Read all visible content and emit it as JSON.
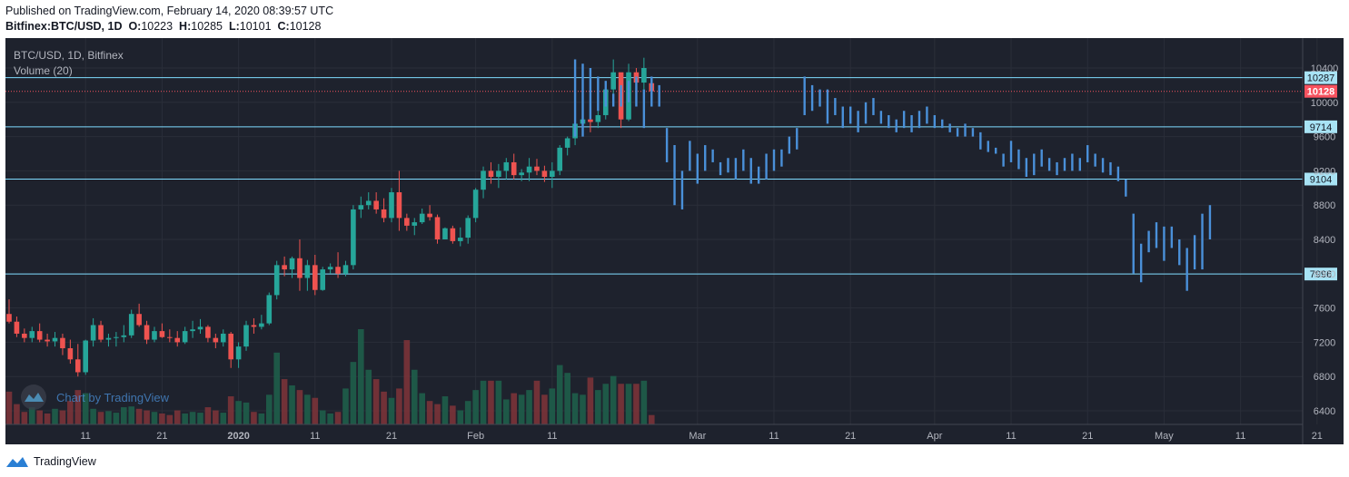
{
  "header": {
    "published": "Published on TradingView.com, February 14, 2020 08:39:57 UTC",
    "symbol": "Bitfinex:BTC/USD, 1D",
    "o_label": "O:",
    "o": "10223",
    "h_label": "H:",
    "h": "10285",
    "l_label": "L:",
    "l": "10101",
    "c_label": "C:",
    "c": "10128"
  },
  "legend": {
    "title": "BTC/USD, 1D, Bitfinex",
    "volume": "Volume (20)"
  },
  "watermark": "Chart by TradingView",
  "footer": {
    "brand": "TradingView"
  },
  "colors": {
    "background": "#1e222d",
    "grid": "#2a2e39",
    "up": "#26a69a",
    "down": "#ef5350",
    "forecast": "#4a90d9",
    "hline": "#7fdbff",
    "axis_text": "#b2b5be",
    "price_label": "#f7525f"
  },
  "chart_data": {
    "type": "candlestick",
    "title": "BTC/USD, 1D, Bitfinex",
    "ylim": [
      6250,
      10750
    ],
    "y_ticks": [
      6400,
      6800,
      7200,
      7600,
      8000,
      8400,
      8800,
      9200,
      9600,
      10000,
      10400
    ],
    "x_ticks": [
      {
        "label": "11",
        "day": 10
      },
      {
        "label": "21",
        "day": 20
      },
      {
        "label": "2020",
        "day": 30
      },
      {
        "label": "11",
        "day": 40
      },
      {
        "label": "21",
        "day": 50
      },
      {
        "label": "Feb",
        "day": 61
      },
      {
        "label": "11",
        "day": 71
      },
      {
        "label": "Mar",
        "day": 90
      },
      {
        "label": "11",
        "day": 100
      },
      {
        "label": "21",
        "day": 110
      },
      {
        "label": "Apr",
        "day": 121
      },
      {
        "label": "11",
        "day": 131
      },
      {
        "label": "21",
        "day": 141
      },
      {
        "label": "May",
        "day": 151
      },
      {
        "label": "11",
        "day": 161
      },
      {
        "label": "21",
        "day": 171
      }
    ],
    "x_note": "day index: 0 = Dec 1 2019",
    "horizontal_levels": [
      10287,
      9714,
      9104,
      7996
    ],
    "current_price": 10128,
    "candles_ohlc": [
      [
        7530,
        7700,
        7420,
        7440
      ],
      [
        7440,
        7500,
        7260,
        7300
      ],
      [
        7300,
        7360,
        7200,
        7250
      ],
      [
        7250,
        7380,
        7200,
        7330
      ],
      [
        7330,
        7420,
        7200,
        7230
      ],
      [
        7230,
        7300,
        7150,
        7210
      ],
      [
        7210,
        7320,
        7150,
        7250
      ],
      [
        7250,
        7300,
        7050,
        7130
      ],
      [
        7130,
        7230,
        6950,
        7000
      ],
      [
        7000,
        7180,
        6800,
        6850
      ],
      [
        6850,
        7230,
        6820,
        7220
      ],
      [
        7220,
        7480,
        7150,
        7400
      ],
      [
        7400,
        7450,
        7200,
        7230
      ],
      [
        7230,
        7300,
        7150,
        7250
      ],
      [
        7250,
        7320,
        7150,
        7260
      ],
      [
        7260,
        7400,
        7200,
        7280
      ],
      [
        7280,
        7580,
        7250,
        7530
      ],
      [
        7530,
        7650,
        7380,
        7400
      ],
      [
        7400,
        7450,
        7180,
        7230
      ],
      [
        7230,
        7380,
        7200,
        7330
      ],
      [
        7330,
        7420,
        7250,
        7260
      ],
      [
        7260,
        7350,
        7200,
        7250
      ],
      [
        7250,
        7330,
        7150,
        7200
      ],
      [
        7200,
        7380,
        7180,
        7330
      ],
      [
        7330,
        7450,
        7250,
        7350
      ],
      [
        7350,
        7470,
        7300,
        7380
      ],
      [
        7380,
        7400,
        7200,
        7250
      ],
      [
        7250,
        7300,
        7130,
        7200
      ],
      [
        7200,
        7350,
        7150,
        7300
      ],
      [
        7300,
        7320,
        6900,
        7000
      ],
      [
        7000,
        7200,
        6900,
        7150
      ],
      [
        7150,
        7450,
        7100,
        7400
      ],
      [
        7400,
        7480,
        7300,
        7380
      ],
      [
        7380,
        7520,
        7350,
        7420
      ],
      [
        7420,
        7780,
        7400,
        7750
      ],
      [
        7750,
        8150,
        7700,
        8100
      ],
      [
        8100,
        8200,
        7970,
        8050
      ],
      [
        8050,
        8200,
        7950,
        8180
      ],
      [
        8180,
        8400,
        7800,
        7950
      ],
      [
        7950,
        8160,
        7800,
        8100
      ],
      [
        8100,
        8220,
        7750,
        7810
      ],
      [
        7810,
        8080,
        7800,
        8050
      ],
      [
        8050,
        8120,
        8000,
        8080
      ],
      [
        8080,
        8250,
        7950,
        8000
      ],
      [
        8000,
        8150,
        7970,
        8100
      ],
      [
        8100,
        8800,
        8050,
        8750
      ],
      [
        8750,
        8900,
        8650,
        8800
      ],
      [
        8800,
        8950,
        8750,
        8850
      ],
      [
        8850,
        8950,
        8700,
        8750
      ],
      [
        8750,
        8880,
        8600,
        8650
      ],
      [
        8650,
        9000,
        8600,
        8950
      ],
      [
        8950,
        9200,
        8500,
        8650
      ],
      [
        8650,
        8700,
        8500,
        8560
      ],
      [
        8560,
        8650,
        8450,
        8600
      ],
      [
        8600,
        8760,
        8580,
        8700
      ],
      [
        8700,
        8800,
        8620,
        8660
      ],
      [
        8660,
        8690,
        8350,
        8400
      ],
      [
        8400,
        8540,
        8400,
        8530
      ],
      [
        8530,
        8560,
        8350,
        8380
      ],
      [
        8380,
        8540,
        8320,
        8420
      ],
      [
        8420,
        8680,
        8350,
        8650
      ],
      [
        8650,
        9000,
        8600,
        8980
      ],
      [
        8980,
        9250,
        8880,
        9200
      ],
      [
        9200,
        9300,
        9050,
        9130
      ],
      [
        9130,
        9280,
        9000,
        9200
      ],
      [
        9200,
        9350,
        9100,
        9300
      ],
      [
        9300,
        9400,
        9100,
        9150
      ],
      [
        9150,
        9220,
        9080,
        9180
      ],
      [
        9180,
        9350,
        9080,
        9250
      ],
      [
        9250,
        9340,
        9150,
        9200
      ],
      [
        9200,
        9260,
        9070,
        9130
      ],
      [
        9130,
        9300,
        9000,
        9200
      ],
      [
        9200,
        9500,
        9150,
        9470
      ],
      [
        9470,
        9600,
        9380,
        9580
      ],
      [
        9580,
        9780,
        9500,
        9750
      ],
      [
        9750,
        9880,
        9650,
        9800
      ],
      [
        9800,
        9900,
        9650,
        9770
      ],
      [
        9770,
        9900,
        9700,
        9850
      ],
      [
        9850,
        10200,
        9800,
        10150
      ],
      [
        10150,
        10500,
        10050,
        10350
      ],
      [
        10350,
        10300,
        9700,
        9800
      ],
      [
        9800,
        10450,
        9780,
        10350
      ],
      [
        10350,
        10400,
        10100,
        10230
      ],
      [
        10230,
        10520,
        10150,
        10400
      ],
      [
        10223,
        10285,
        10101,
        10128
      ]
    ],
    "volume_ohlc_colored": "volume bars follow candle direction (green up, red down)",
    "volume": [
      42,
      26,
      16,
      22,
      18,
      14,
      20,
      18,
      30,
      44,
      40,
      20,
      16,
      17,
      15,
      22,
      23,
      20,
      18,
      16,
      14,
      12,
      18,
      14,
      16,
      15,
      22,
      18,
      15,
      36,
      30,
      28,
      16,
      14,
      38,
      92,
      58,
      50,
      44,
      38,
      34,
      18,
      14,
      16,
      46,
      80,
      122,
      70,
      58,
      42,
      34,
      46,
      108,
      70,
      40,
      30,
      26,
      36,
      24,
      18,
      30,
      44,
      56,
      56,
      56,
      32,
      40,
      38,
      44,
      56,
      38,
      46,
      76,
      66,
      40,
      38,
      60,
      44,
      52,
      62,
      52,
      52,
      52,
      56,
      12
    ],
    "forecast_projection": {
      "start_day": 74,
      "bars_high_low": [
        [
          10500,
          9600
        ],
        [
          10450,
          9600
        ],
        [
          10400,
          9800
        ],
        [
          10300,
          9900
        ],
        [
          10250,
          9950
        ],
        [
          10100,
          9950
        ],
        [
          10200,
          9950
        ],
        [
          10250,
          10000
        ],
        [
          10300,
          9950
        ],
        [
          10150,
          9700
        ],
        [
          10300,
          9950
        ],
        [
          10200,
          9950
        ],
        [
          9700,
          9300
        ],
        [
          9500,
          8800
        ],
        [
          9200,
          8750
        ],
        [
          9550,
          9200
        ],
        [
          9400,
          9050
        ],
        [
          9500,
          9200
        ],
        [
          9450,
          9300
        ],
        [
          9300,
          9150
        ],
        [
          9350,
          9180
        ],
        [
          9350,
          9100
        ],
        [
          9450,
          9200
        ],
        [
          9350,
          9050
        ],
        [
          9250,
          9050
        ],
        [
          9400,
          9100
        ],
        [
          9450,
          9200
        ],
        [
          9450,
          9250
        ],
        [
          9600,
          9400
        ],
        [
          9700,
          9450
        ],
        [
          10300,
          9850
        ],
        [
          10200,
          9900
        ],
        [
          10150,
          9950
        ],
        [
          10150,
          9750
        ],
        [
          10050,
          9850
        ],
        [
          9950,
          9700
        ],
        [
          9950,
          9750
        ],
        [
          9900,
          9650
        ],
        [
          10000,
          9750
        ],
        [
          10050,
          9850
        ],
        [
          9900,
          9750
        ],
        [
          9850,
          9700
        ],
        [
          9800,
          9650
        ],
        [
          9900,
          9700
        ],
        [
          9850,
          9650
        ],
        [
          9900,
          9700
        ],
        [
          9950,
          9750
        ],
        [
          9850,
          9700
        ],
        [
          9800,
          9700
        ],
        [
          9750,
          9650
        ],
        [
          9700,
          9600
        ],
        [
          9750,
          9600
        ],
        [
          9700,
          9600
        ],
        [
          9650,
          9450
        ],
        [
          9550,
          9420
        ],
        [
          9470,
          9400
        ],
        [
          9400,
          9250
        ],
        [
          9550,
          9300
        ],
        [
          9450,
          9220
        ],
        [
          9350,
          9130
        ],
        [
          9400,
          9150
        ],
        [
          9450,
          9250
        ],
        [
          9350,
          9200
        ],
        [
          9300,
          9150
        ],
        [
          9350,
          9200
        ],
        [
          9400,
          9200
        ],
        [
          9350,
          9200
        ],
        [
          9500,
          9300
        ],
        [
          9400,
          9250
        ],
        [
          9350,
          9180
        ],
        [
          9300,
          9150
        ],
        [
          9250,
          9080
        ],
        [
          9100,
          8900
        ],
        [
          8700,
          8000
        ],
        [
          8350,
          7900
        ],
        [
          8500,
          8250
        ],
        [
          8600,
          8300
        ],
        [
          8550,
          8150
        ],
        [
          8550,
          8300
        ],
        [
          8400,
          8100
        ],
        [
          8300,
          7800
        ],
        [
          8450,
          8050
        ],
        [
          8700,
          8050
        ],
        [
          8800,
          8400
        ]
      ]
    }
  }
}
